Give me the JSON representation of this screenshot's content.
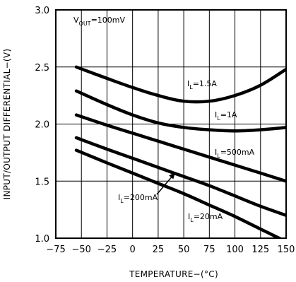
{
  "chart_data": {
    "type": "line",
    "title": "",
    "xlabel": "TEMPERATURE−(°C)",
    "ylabel": "INPUT/OUTPUT DIFFERENTIAL−(V)",
    "xlim": [
      -75,
      150
    ],
    "ylim": [
      1.0,
      3.0
    ],
    "grid": true,
    "x_ticks": [
      -75,
      -50,
      -25,
      0,
      25,
      50,
      75,
      100,
      125,
      150
    ],
    "x_tick_labels": [
      "−75",
      "−50",
      "−25",
      "0",
      "25",
      "50",
      "75",
      "100",
      "125",
      "150"
    ],
    "y_ticks": [
      1.0,
      1.5,
      2.0,
      2.5,
      3.0
    ],
    "y_tick_labels": [
      "1.0",
      "1.5",
      "2.0",
      "2.5",
      "3.0"
    ],
    "condition": {
      "prefix": "V",
      "sub": "OUT",
      "suffix": "=100mV"
    },
    "series": [
      {
        "label": {
          "prefix": "I",
          "sub": "L",
          "suffix": "=1.5A"
        },
        "x": [
          -55,
          -25,
          0,
          25,
          50,
          75,
          100,
          125,
          150
        ],
        "y": [
          2.5,
          2.4,
          2.32,
          2.25,
          2.2,
          2.2,
          2.25,
          2.34,
          2.48
        ]
      },
      {
        "label": {
          "prefix": "I",
          "sub": "L",
          "suffix": "=1A"
        },
        "x": [
          -55,
          -25,
          0,
          25,
          50,
          75,
          100,
          125,
          150
        ],
        "y": [
          2.29,
          2.17,
          2.08,
          2.01,
          1.97,
          1.95,
          1.94,
          1.95,
          1.97
        ]
      },
      {
        "label": {
          "prefix": "I",
          "sub": "L",
          "suffix": "=500mA"
        },
        "x": [
          -55,
          -25,
          0,
          25,
          50,
          75,
          100,
          125,
          150
        ],
        "y": [
          2.08,
          1.99,
          1.92,
          1.85,
          1.78,
          1.71,
          1.64,
          1.57,
          1.5
        ]
      },
      {
        "label": {
          "prefix": "I",
          "sub": "L",
          "suffix": "=200mA"
        },
        "x": [
          -55,
          -25,
          0,
          25,
          50,
          75,
          100,
          125,
          150
        ],
        "y": [
          1.88,
          1.78,
          1.7,
          1.62,
          1.54,
          1.46,
          1.37,
          1.28,
          1.2
        ]
      },
      {
        "label": {
          "prefix": "I",
          "sub": "L",
          "suffix": "=20mA"
        },
        "x": [
          -55,
          -25,
          0,
          25,
          50,
          75,
          100,
          125,
          150
        ],
        "y": [
          1.77,
          1.66,
          1.57,
          1.48,
          1.39,
          1.29,
          1.19,
          1.08,
          0.97
        ]
      }
    ]
  }
}
